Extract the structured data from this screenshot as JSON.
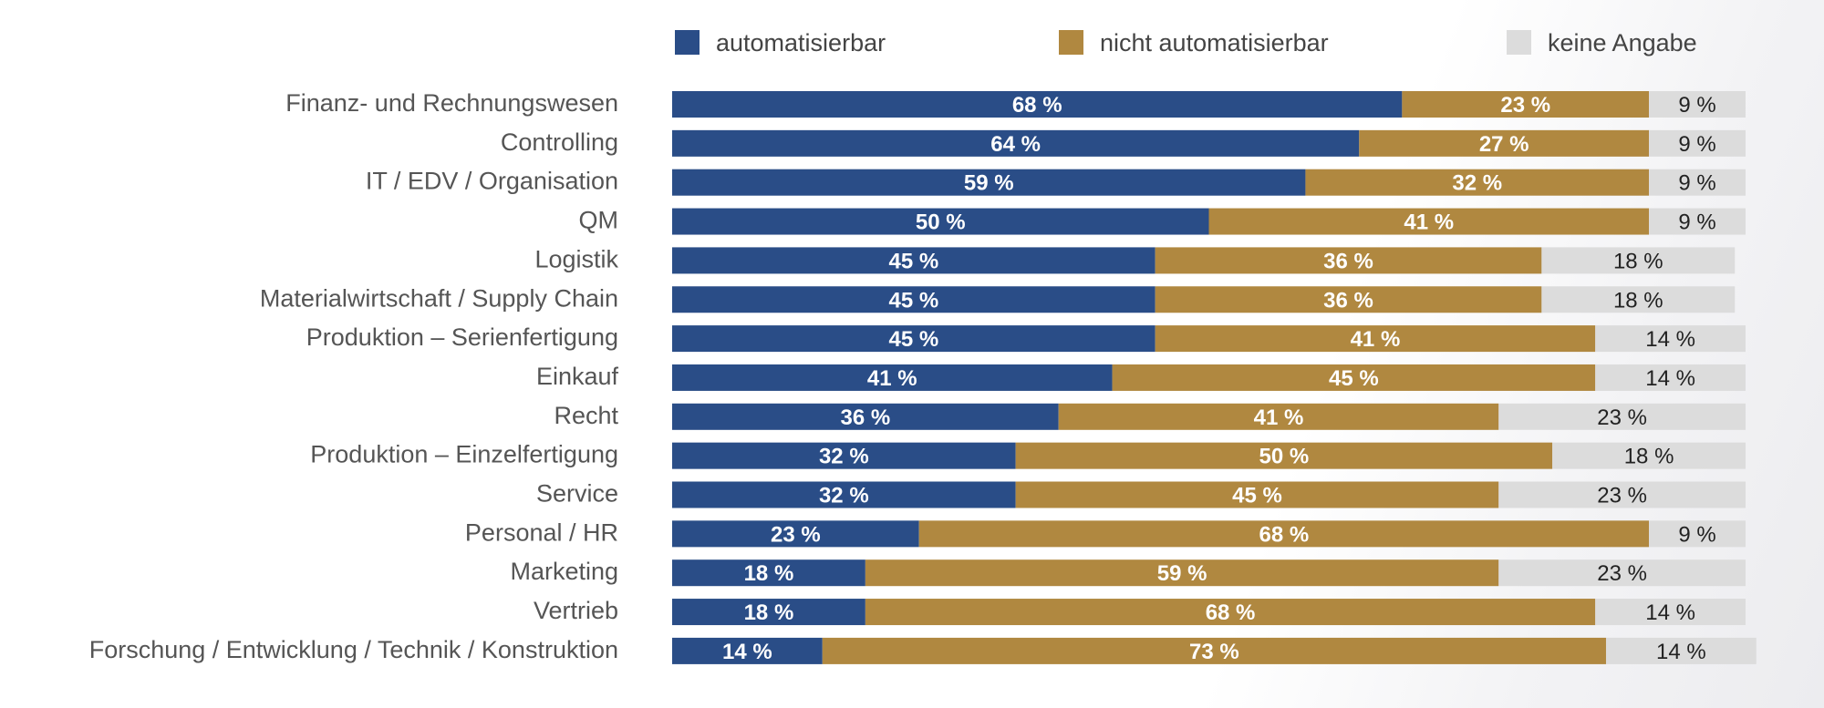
{
  "chart_data": {
    "type": "bar",
    "orientation": "horizontal",
    "stacked": true,
    "unit": "%",
    "legend_position": "top",
    "series": [
      {
        "name": "automatisierbar",
        "color": "#2a4d87",
        "values": [
          68,
          64,
          59,
          50,
          45,
          45,
          45,
          41,
          36,
          32,
          32,
          23,
          18,
          18,
          14
        ]
      },
      {
        "name": "nicht automatisierbar",
        "color": "#b08840",
        "values": [
          23,
          27,
          32,
          41,
          36,
          36,
          41,
          45,
          41,
          50,
          45,
          68,
          59,
          68,
          73
        ]
      },
      {
        "name": "keine Angabe",
        "color": "#dcdcdc",
        "values": [
          9,
          9,
          9,
          9,
          18,
          18,
          14,
          14,
          23,
          18,
          23,
          9,
          23,
          14,
          14
        ]
      }
    ],
    "categories": [
      "Finanz- und Rechnungswesen",
      "Controlling",
      "IT / EDV / Organisation",
      "QM",
      "Logistik",
      "Materialwirtschaft / Supply Chain",
      "Produktion – Serienfertigung",
      "Einkauf",
      "Recht",
      "Produktion – Einzelfertigung",
      "Service",
      "Personal / HR",
      "Marketing",
      "Vertrieb",
      "Forschung / Entwicklung / Technik / Konstruktion"
    ],
    "xlim": [
      0,
      100
    ],
    "grid": false
  }
}
